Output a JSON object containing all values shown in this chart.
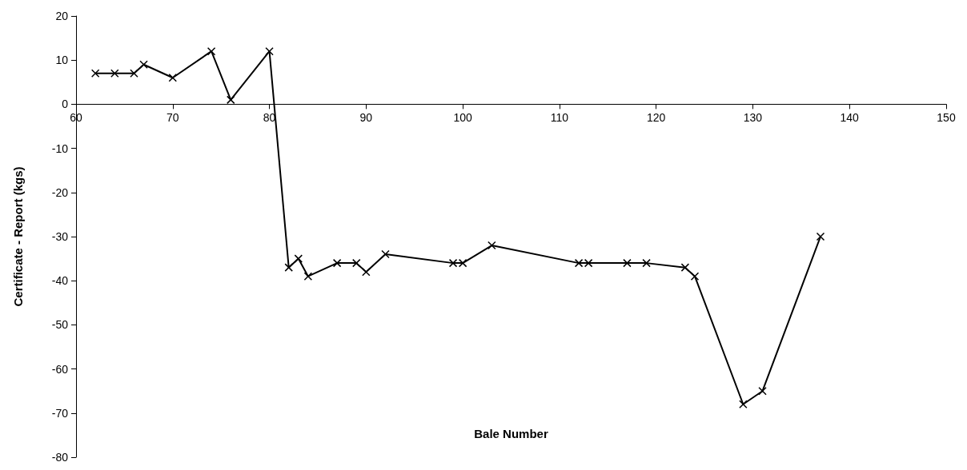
{
  "chart_data": {
    "type": "line",
    "xlabel": "Bale Number",
    "ylabel": "Certificate - Report (kgs)",
    "x": [
      62,
      64,
      66,
      67,
      70,
      74,
      76,
      80,
      82,
      83,
      84,
      87,
      89,
      90,
      92,
      99,
      100,
      103,
      112,
      113,
      117,
      119,
      123,
      124,
      129,
      131,
      137
    ],
    "series": [
      {
        "color": "#000000",
        "values": [
          7,
          7,
          7,
          9,
          6,
          12,
          1,
          12,
          -37,
          -35,
          -39,
          -36,
          -36,
          -38,
          -34,
          -36,
          -36,
          -32,
          -36,
          -36,
          -36,
          -36,
          -37,
          -39,
          -68,
          -65,
          -30
        ]
      }
    ],
    "xlim": [
      60,
      150
    ],
    "xticks": [
      60,
      70,
      80,
      90,
      100,
      110,
      120,
      130,
      140,
      150
    ],
    "ylim": [
      -80,
      20
    ],
    "yticks": [
      -80,
      -70,
      -60,
      -50,
      -40,
      -30,
      -20,
      -10,
      0,
      10,
      20
    ],
    "marker": "cross",
    "line_style": "solid"
  }
}
